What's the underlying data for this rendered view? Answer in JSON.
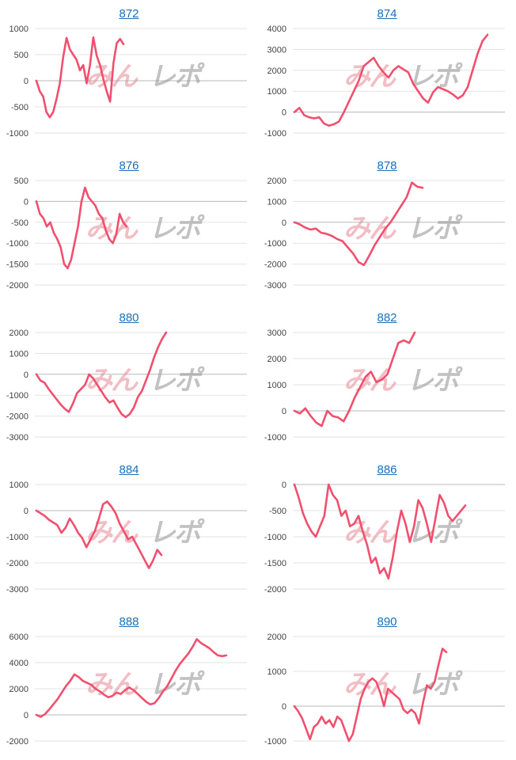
{
  "watermark": {
    "left": "みん",
    "right": "レポ"
  },
  "colors": {
    "series": "#f0506e",
    "link": "#1a6fb8"
  },
  "chart_data": [
    {
      "type": "line",
      "title": "872",
      "ylim": [
        -1000,
        1000
      ],
      "yticks": [
        -1000,
        -500,
        0,
        500,
        1000
      ],
      "values": [
        0,
        -200,
        -300,
        -600,
        -700,
        -600,
        -350,
        -50,
        450,
        820,
        600,
        500,
        400,
        200,
        300,
        -50,
        300,
        830,
        480,
        300,
        30,
        -200,
        -400,
        330,
        720,
        800,
        700
      ]
    },
    {
      "type": "line",
      "title": "874",
      "ylim": [
        -1000,
        4000
      ],
      "yticks": [
        -1000,
        0,
        1000,
        2000,
        3000,
        4000
      ],
      "values": [
        0,
        200,
        -150,
        -250,
        -300,
        -250,
        -550,
        -650,
        -580,
        -450,
        0,
        500,
        1000,
        1500,
        2200,
        2400,
        2600,
        2200,
        1900,
        1650,
        2000,
        2200,
        2050,
        1900,
        1350,
        1000,
        650,
        450,
        950,
        1200,
        1100,
        1000,
        850,
        650,
        800,
        1200,
        2000,
        2800,
        3400,
        3700
      ]
    },
    {
      "type": "line",
      "title": "876",
      "ylim": [
        -2000,
        500
      ],
      "yticks": [
        -2000,
        -1500,
        -1000,
        -500,
        0,
        500
      ],
      "values": [
        0,
        -300,
        -400,
        -600,
        -500,
        -750,
        -900,
        -1100,
        -1500,
        -1600,
        -1400,
        -1000,
        -600,
        0,
        330,
        100,
        0,
        -100,
        -300,
        -400,
        -700,
        -900,
        -1000,
        -800,
        -300,
        -500,
        -600
      ]
    },
    {
      "type": "line",
      "title": "878",
      "ylim": [
        -3000,
        2000
      ],
      "yticks": [
        -3000,
        -2000,
        -1000,
        0,
        1000,
        2000
      ],
      "values": [
        0,
        -100,
        -250,
        -350,
        -300,
        -500,
        -550,
        -650,
        -800,
        -900,
        -1200,
        -1500,
        -1900,
        -2050,
        -1600,
        -1100,
        -700,
        -300,
        0,
        400,
        800,
        1200,
        1900,
        1700,
        1650
      ]
    },
    {
      "type": "line",
      "title": "880",
      "ylim": [
        -3000,
        2000
      ],
      "yticks": [
        -3000,
        -2000,
        -1000,
        0,
        1000,
        2000
      ],
      "values": [
        0,
        -300,
        -400,
        -700,
        -950,
        -1200,
        -1450,
        -1650,
        -1800,
        -1400,
        -900,
        -700,
        -500,
        0,
        -200,
        -500,
        -800,
        -1100,
        -1350,
        -1250,
        -1600,
        -1900,
        -2050,
        -1900,
        -1600,
        -1100,
        -800,
        -300,
        200,
        800,
        1300,
        1700,
        2000
      ]
    },
    {
      "type": "line",
      "title": "882",
      "ylim": [
        -1000,
        3000
      ],
      "yticks": [
        -1000,
        0,
        1000,
        2000,
        3000
      ],
      "values": [
        0,
        -100,
        100,
        -200,
        -450,
        -580,
        0,
        -200,
        -250,
        -400,
        0,
        500,
        900,
        1300,
        1500,
        1100,
        1200,
        1400,
        2000,
        2600,
        2700,
        2600,
        3000
      ]
    },
    {
      "type": "line",
      "title": "884",
      "ylim": [
        -3000,
        1000
      ],
      "yticks": [
        -3000,
        -2000,
        -1000,
        0,
        1000
      ],
      "values": [
        0,
        -100,
        -200,
        -350,
        -450,
        -550,
        -850,
        -650,
        -300,
        -550,
        -850,
        -1050,
        -1400,
        -1100,
        -800,
        -300,
        250,
        350,
        150,
        -100,
        -500,
        -800,
        -1100,
        -1000,
        -1300,
        -1600,
        -1900,
        -2200,
        -1900,
        -1500,
        -1700
      ]
    },
    {
      "type": "line",
      "title": "886",
      "ylim": [
        -2000,
        0
      ],
      "yticks": [
        -2000,
        -1500,
        -1000,
        -500,
        0
      ],
      "values": [
        0,
        -250,
        -550,
        -750,
        -900,
        -1000,
        -800,
        -600,
        0,
        -200,
        -300,
        -600,
        -500,
        -800,
        -750,
        -600,
        -900,
        -1150,
        -1500,
        -1400,
        -1700,
        -1600,
        -1800,
        -1400,
        -900,
        -500,
        -750,
        -1100,
        -800,
        -300,
        -450,
        -750,
        -1100,
        -650,
        -200,
        -350,
        -600,
        -700,
        -600,
        -500,
        -400
      ]
    },
    {
      "type": "line",
      "title": "888",
      "ylim": [
        -2000,
        6000
      ],
      "yticks": [
        -2000,
        0,
        2000,
        4000,
        6000
      ],
      "values": [
        0,
        -150,
        50,
        400,
        800,
        1200,
        1700,
        2200,
        2600,
        3100,
        2900,
        2600,
        2450,
        2300,
        2000,
        1800,
        1550,
        1350,
        1450,
        1700,
        1600,
        1900,
        2100,
        1900,
        1600,
        1300,
        1000,
        800,
        900,
        1300,
        1800,
        2200,
        2800,
        3400,
        3900,
        4300,
        4700,
        5200,
        5800,
        5500,
        5300,
        5100,
        4800,
        4550,
        4500,
        4550
      ]
    },
    {
      "type": "line",
      "title": "890",
      "ylim": [
        -1000,
        2000
      ],
      "yticks": [
        -1000,
        0,
        1000,
        2000
      ],
      "values": [
        0,
        -150,
        -350,
        -650,
        -950,
        -600,
        -500,
        -300,
        -500,
        -400,
        -600,
        -300,
        -400,
        -700,
        -1000,
        -800,
        -300,
        200,
        500,
        700,
        800,
        700,
        400,
        0,
        500,
        400,
        300,
        200,
        -100,
        -200,
        -100,
        -200,
        -500,
        100,
        600,
        500,
        700,
        1200,
        1650,
        1550
      ]
    }
  ]
}
